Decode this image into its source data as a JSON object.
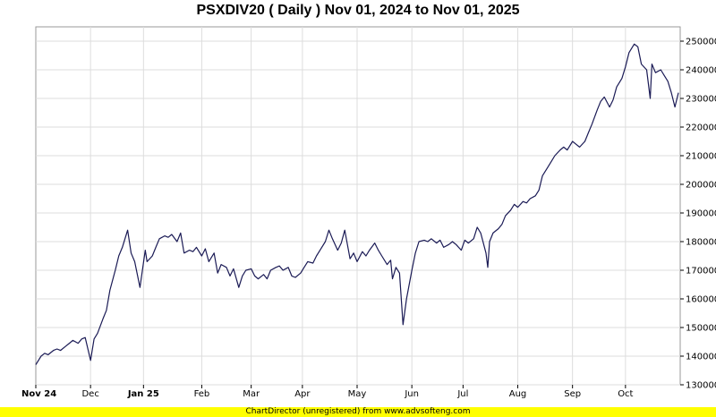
{
  "chart_data": {
    "type": "line",
    "title": "PSXDIV20 ( Daily ) Nov 01, 2024 to Nov 01, 2025",
    "xlabel": "",
    "ylabel": "",
    "ylim": [
      130000,
      255000
    ],
    "grid": true,
    "x_tick_labels": [
      {
        "label": "Nov 24",
        "date": "2024-11-01",
        "bold": true
      },
      {
        "label": "Dec",
        "date": "2024-12-02",
        "bold": false
      },
      {
        "label": "Jan 25",
        "date": "2025-01-01",
        "bold": true
      },
      {
        "label": "Feb",
        "date": "2025-02-03",
        "bold": false
      },
      {
        "label": "Mar",
        "date": "2025-03-03",
        "bold": false
      },
      {
        "label": "Apr",
        "date": "2025-04-01",
        "bold": false
      },
      {
        "label": "May",
        "date": "2025-05-02",
        "bold": false
      },
      {
        "label": "Jun",
        "date": "2025-06-02",
        "bold": false
      },
      {
        "label": "Jul",
        "date": "2025-07-01",
        "bold": false
      },
      {
        "label": "Aug",
        "date": "2025-08-01",
        "bold": false
      },
      {
        "label": "Sep",
        "date": "2025-09-01",
        "bold": false
      },
      {
        "label": "Oct",
        "date": "2025-10-01",
        "bold": false
      }
    ],
    "y_ticks": [
      130000,
      140000,
      150000,
      160000,
      170000,
      180000,
      190000,
      200000,
      210000,
      220000,
      230000,
      240000,
      250000
    ],
    "series": [
      {
        "color": "#1a1a55",
        "points": [
          [
            "2024-11-01",
            137000
          ],
          [
            "2024-11-04",
            140000
          ],
          [
            "2024-11-06",
            141000
          ],
          [
            "2024-11-08",
            140500
          ],
          [
            "2024-11-11",
            142000
          ],
          [
            "2024-11-13",
            142500
          ],
          [
            "2024-11-15",
            142000
          ],
          [
            "2024-11-18",
            143500
          ],
          [
            "2024-11-20",
            144500
          ],
          [
            "2024-11-22",
            145500
          ],
          [
            "2024-11-25",
            144500
          ],
          [
            "2024-11-27",
            146000
          ],
          [
            "2024-11-29",
            146500
          ],
          [
            "2024-12-02",
            138500
          ],
          [
            "2024-12-04",
            146000
          ],
          [
            "2024-12-06",
            148000
          ],
          [
            "2024-12-09",
            153000
          ],
          [
            "2024-12-11",
            156000
          ],
          [
            "2024-12-13",
            163000
          ],
          [
            "2024-12-16",
            170000
          ],
          [
            "2024-12-18",
            175000
          ],
          [
            "2024-12-20",
            178000
          ],
          [
            "2024-12-23",
            184000
          ],
          [
            "2024-12-25",
            176000
          ],
          [
            "2024-12-27",
            173000
          ],
          [
            "2024-12-30",
            164000
          ],
          [
            "2025-01-02",
            177000
          ],
          [
            "2025-01-03",
            173000
          ],
          [
            "2025-01-06",
            175000
          ],
          [
            "2025-01-08",
            178000
          ],
          [
            "2025-01-10",
            181000
          ],
          [
            "2025-01-13",
            182000
          ],
          [
            "2025-01-15",
            181500
          ],
          [
            "2025-01-17",
            182500
          ],
          [
            "2025-01-20",
            180000
          ],
          [
            "2025-01-22",
            183000
          ],
          [
            "2025-01-24",
            176000
          ],
          [
            "2025-01-27",
            177000
          ],
          [
            "2025-01-29",
            176500
          ],
          [
            "2025-01-31",
            178000
          ],
          [
            "2025-02-03",
            175000
          ],
          [
            "2025-02-05",
            177500
          ],
          [
            "2025-02-07",
            173000
          ],
          [
            "2025-02-10",
            176000
          ],
          [
            "2025-02-12",
            169000
          ],
          [
            "2025-02-14",
            172000
          ],
          [
            "2025-02-17",
            171000
          ],
          [
            "2025-02-19",
            168000
          ],
          [
            "2025-02-21",
            170500
          ],
          [
            "2025-02-24",
            164000
          ],
          [
            "2025-02-26",
            168000
          ],
          [
            "2025-02-28",
            170000
          ],
          [
            "2025-03-03",
            170500
          ],
          [
            "2025-03-05",
            168000
          ],
          [
            "2025-03-07",
            167000
          ],
          [
            "2025-03-10",
            168500
          ],
          [
            "2025-03-12",
            167000
          ],
          [
            "2025-03-14",
            170000
          ],
          [
            "2025-03-17",
            171000
          ],
          [
            "2025-03-19",
            171500
          ],
          [
            "2025-03-21",
            170000
          ],
          [
            "2025-03-24",
            171000
          ],
          [
            "2025-03-26",
            168000
          ],
          [
            "2025-03-28",
            167500
          ],
          [
            "2025-03-31",
            169000
          ],
          [
            "2025-04-02",
            171000
          ],
          [
            "2025-04-04",
            173000
          ],
          [
            "2025-04-07",
            172500
          ],
          [
            "2025-04-09",
            175000
          ],
          [
            "2025-04-11",
            177000
          ],
          [
            "2025-04-14",
            180000
          ],
          [
            "2025-04-16",
            184000
          ],
          [
            "2025-04-18",
            181000
          ],
          [
            "2025-04-21",
            177000
          ],
          [
            "2025-04-23",
            179500
          ],
          [
            "2025-04-25",
            184000
          ],
          [
            "2025-04-28",
            174000
          ],
          [
            "2025-04-30",
            176000
          ],
          [
            "2025-05-02",
            173000
          ],
          [
            "2025-05-05",
            176500
          ],
          [
            "2025-05-07",
            175000
          ],
          [
            "2025-05-09",
            177000
          ],
          [
            "2025-05-12",
            179500
          ],
          [
            "2025-05-14",
            177000
          ],
          [
            "2025-05-16",
            175000
          ],
          [
            "2025-05-19",
            172000
          ],
          [
            "2025-05-21",
            173500
          ],
          [
            "2025-05-22",
            167000
          ],
          [
            "2025-05-24",
            171000
          ],
          [
            "2025-05-26",
            169000
          ],
          [
            "2025-05-28",
            151000
          ],
          [
            "2025-05-30",
            160000
          ],
          [
            "2025-06-02",
            170000
          ],
          [
            "2025-06-04",
            176000
          ],
          [
            "2025-06-06",
            180000
          ],
          [
            "2025-06-09",
            180500
          ],
          [
            "2025-06-11",
            180000
          ],
          [
            "2025-06-13",
            181000
          ],
          [
            "2025-06-16",
            179500
          ],
          [
            "2025-06-18",
            180500
          ],
          [
            "2025-06-20",
            178000
          ],
          [
            "2025-06-23",
            179000
          ],
          [
            "2025-06-25",
            180000
          ],
          [
            "2025-06-27",
            179000
          ],
          [
            "2025-06-30",
            177000
          ],
          [
            "2025-07-02",
            180500
          ],
          [
            "2025-07-04",
            179500
          ],
          [
            "2025-07-07",
            181000
          ],
          [
            "2025-07-09",
            185000
          ],
          [
            "2025-07-11",
            183000
          ],
          [
            "2025-07-14",
            176000
          ],
          [
            "2025-07-15",
            171000
          ],
          [
            "2025-07-16",
            180000
          ],
          [
            "2025-07-18",
            183000
          ],
          [
            "2025-07-21",
            184500
          ],
          [
            "2025-07-23",
            186000
          ],
          [
            "2025-07-25",
            189000
          ],
          [
            "2025-07-28",
            191000
          ],
          [
            "2025-07-30",
            193000
          ],
          [
            "2025-08-01",
            192000
          ],
          [
            "2025-08-04",
            194000
          ],
          [
            "2025-08-06",
            193500
          ],
          [
            "2025-08-08",
            195000
          ],
          [
            "2025-08-11",
            196000
          ],
          [
            "2025-08-13",
            198000
          ],
          [
            "2025-08-15",
            203000
          ],
          [
            "2025-08-18",
            206000
          ],
          [
            "2025-08-20",
            208000
          ],
          [
            "2025-08-22",
            210000
          ],
          [
            "2025-08-25",
            212000
          ],
          [
            "2025-08-27",
            213000
          ],
          [
            "2025-08-29",
            212000
          ],
          [
            "2025-09-01",
            215000
          ],
          [
            "2025-09-03",
            214000
          ],
          [
            "2025-09-05",
            213000
          ],
          [
            "2025-09-08",
            215000
          ],
          [
            "2025-09-10",
            218000
          ],
          [
            "2025-09-12",
            221000
          ],
          [
            "2025-09-15",
            226000
          ],
          [
            "2025-09-17",
            229000
          ],
          [
            "2025-09-19",
            230500
          ],
          [
            "2025-09-22",
            227000
          ],
          [
            "2025-09-24",
            229500
          ],
          [
            "2025-09-26",
            234000
          ],
          [
            "2025-09-29",
            237000
          ],
          [
            "2025-10-01",
            241000
          ],
          [
            "2025-10-03",
            246000
          ],
          [
            "2025-10-06",
            249000
          ],
          [
            "2025-10-08",
            248000
          ],
          [
            "2025-10-10",
            242000
          ],
          [
            "2025-10-13",
            240000
          ],
          [
            "2025-10-15",
            230000
          ],
          [
            "2025-10-16",
            242000
          ],
          [
            "2025-10-18",
            239000
          ],
          [
            "2025-10-21",
            240000
          ],
          [
            "2025-10-23",
            238000
          ],
          [
            "2025-10-25",
            236000
          ],
          [
            "2025-10-27",
            232000
          ],
          [
            "2025-10-29",
            227000
          ],
          [
            "2025-10-31",
            232000
          ]
        ]
      }
    ]
  },
  "footer": {
    "text": "ChartDirector (unregistered) from www.advsofteng.com",
    "bar_color": "#ffff00"
  }
}
